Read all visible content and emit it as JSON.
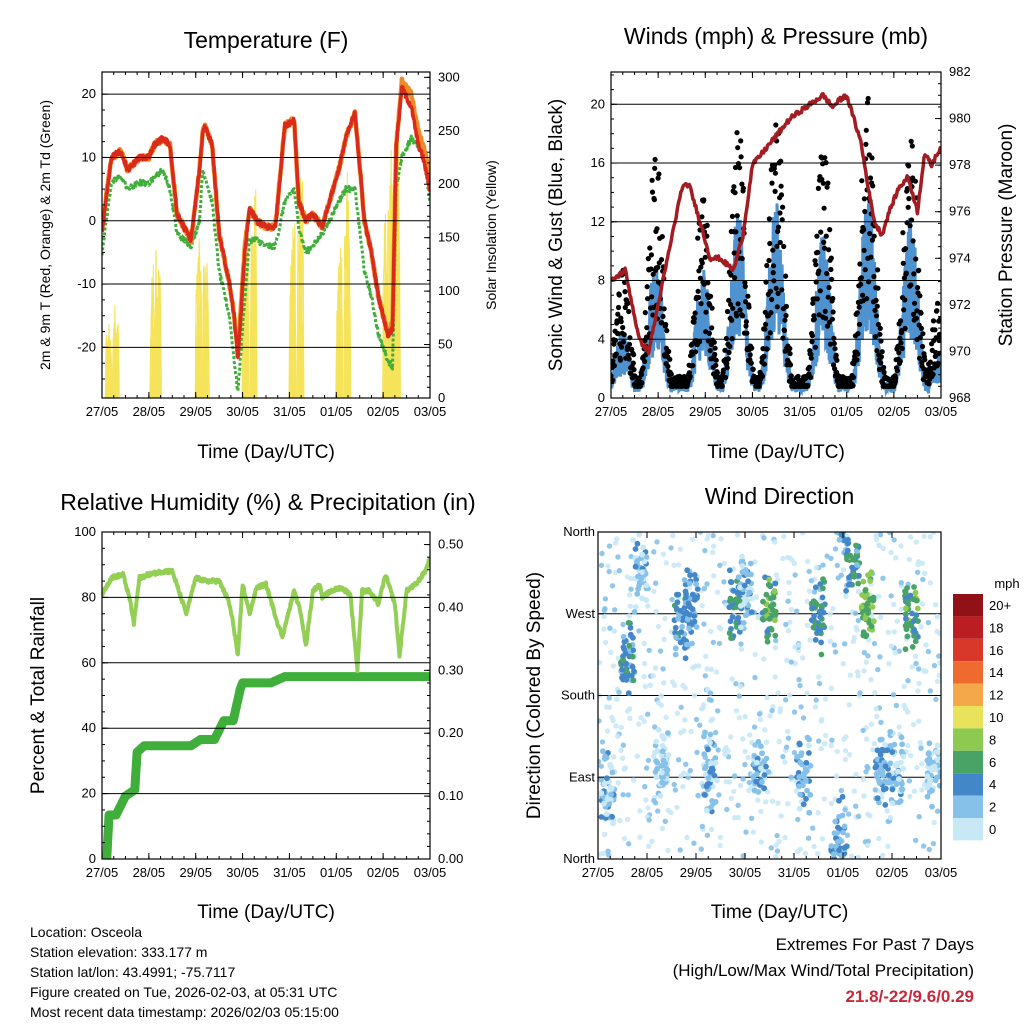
{
  "colors": {
    "temp2m": "#d92a1c",
    "temp9m": "#f08a24",
    "dewpoint": "#3fae3a",
    "solar": "#f5e35a",
    "wind": "#4f92d0",
    "gust": "#000000",
    "pressure": "#a21c22",
    "rh": "#93cf55",
    "precip": "#3fae3a",
    "extremes": "#c8283a"
  },
  "days": [
    "27/05",
    "28/05",
    "29/05",
    "30/05",
    "31/05",
    "01/05",
    "02/05",
    "03/05"
  ],
  "chart_data": [
    {
      "id": "temperature",
      "type": "line",
      "title": "Temperature (F)",
      "xlabel": "Time (Day/UTC)",
      "ylabel": "2m & 9m T (Red, Orange) & 2m Td (Green)",
      "ylabel_right": "Solar Insolation (Yellow)",
      "ylim": [
        -28,
        23.5
      ],
      "ylim_right": [
        0,
        305
      ],
      "yticks": [
        -20,
        -10,
        0,
        10,
        20
      ],
      "yticks_right": [
        0,
        50,
        100,
        150,
        200,
        250,
        300
      ],
      "x_days": [
        0,
        0.2,
        0.4,
        0.55,
        0.8,
        1,
        1.12,
        1.3,
        1.45,
        1.6,
        1.9,
        2.08,
        2.15,
        2.2,
        2.35,
        2.5,
        2.72,
        2.82,
        2.9,
        3.05,
        3.15,
        3.3,
        3.5,
        3.7,
        3.9,
        4.1,
        4.2,
        4.35,
        4.5,
        4.7,
        4.85,
        5.05,
        5.2,
        5.4,
        5.6,
        5.75,
        5.9,
        6.1,
        6.2,
        6.28,
        6.4,
        6.6,
        6.75,
        6.85,
        7
      ],
      "series": [
        {
          "name": "2m T",
          "values": [
            -2,
            10,
            11,
            8,
            10,
            10,
            12,
            13,
            12,
            1,
            -3,
            8,
            14,
            15,
            12,
            -2,
            -10,
            -15,
            -22,
            -5,
            2,
            0,
            -1,
            -1,
            15,
            16,
            3,
            0,
            1,
            -1,
            3,
            8,
            13,
            17,
            0,
            -5,
            -12,
            -18,
            -17,
            12,
            21,
            18,
            12,
            10,
            5
          ]
        },
        {
          "name": "9m T",
          "values": [
            -1,
            10,
            11,
            8,
            10,
            10,
            12,
            13,
            12,
            1,
            -3,
            8,
            14,
            15,
            12,
            -2,
            -10,
            -15,
            -21,
            -4,
            2,
            0,
            -1,
            -1,
            15,
            16,
            3,
            0,
            1,
            -1,
            3,
            8,
            13,
            17,
            0,
            -5,
            -12,
            -18,
            -16,
            12,
            22,
            20,
            14,
            12,
            7
          ]
        },
        {
          "name": "2m Td",
          "values": [
            -5,
            6,
            7,
            5,
            6,
            6,
            7,
            8,
            5,
            -2,
            -4,
            0,
            8,
            7,
            3,
            -8,
            -15,
            -22,
            -27,
            -12,
            -3,
            -3,
            -4,
            -4,
            3,
            5,
            -1,
            -5,
            -4,
            -2,
            0,
            3,
            5,
            5,
            -8,
            -12,
            -18,
            -22,
            -23,
            5,
            10,
            13,
            12,
            11,
            3
          ]
        },
        {
          "name": "Solar Insolation",
          "peaks": [
            [
              0.13,
              80
            ],
            [
              0.28,
              100
            ],
            [
              1.08,
              130
            ],
            [
              1.18,
              150
            ],
            [
              2.05,
              160
            ],
            [
              2.2,
              150
            ],
            [
              3.05,
              190
            ],
            [
              3.22,
              230
            ],
            [
              4.05,
              180
            ],
            [
              4.22,
              220
            ],
            [
              5.05,
              190
            ],
            [
              5.22,
              230
            ],
            [
              6.05,
              195
            ],
            [
              6.18,
              260
            ],
            [
              6.28,
              290
            ]
          ]
        }
      ]
    },
    {
      "id": "winds",
      "type": "scatter",
      "title": "Winds (mph) & Pressure (mb)",
      "xlabel": "Time (Day/UTC)",
      "ylabel": "Sonic Wind & Gust (Blue, Black)",
      "ylabel_right": "Station Pressure (Maroon)",
      "ylim": [
        0,
        22.2
      ],
      "ylim_right": [
        968,
        982
      ],
      "yticks": [
        0,
        4,
        8,
        12,
        16,
        20
      ],
      "yticks_right": [
        968,
        970,
        972,
        974,
        976,
        978,
        980,
        982
      ],
      "pressure": {
        "x_days": [
          0,
          0.3,
          0.6,
          0.8,
          1,
          1.2,
          1.5,
          1.65,
          1.9,
          2.1,
          2.3,
          2.6,
          2.8,
          3,
          3.2,
          3.4,
          3.6,
          3.8,
          4,
          4.15,
          4.35,
          4.5,
          4.7,
          4.85,
          5.0,
          5.15,
          5.3,
          5.5,
          5.6,
          5.75,
          5.9,
          6.1,
          6.3,
          6.5,
          6.65,
          6.8,
          7
        ],
        "values": [
          973,
          973.5,
          970.5,
          970,
          972,
          974,
          977,
          977.2,
          975.5,
          974,
          974,
          973.5,
          975,
          978,
          978.5,
          979,
          979.5,
          980,
          980.3,
          980.5,
          980.8,
          981,
          980.5,
          980.8,
          981,
          980,
          979,
          976.5,
          975.5,
          975,
          976,
          977,
          977.5,
          976,
          978.5,
          978,
          978.8
        ]
      },
      "wind_peak_days": [
        0.25,
        0.95,
        1.95,
        2.7,
        3.5,
        4.5,
        5.45,
        6.35,
        6.95
      ],
      "wind_peak_mph": [
        6,
        12,
        11,
        16,
        17,
        14,
        18,
        16,
        4
      ],
      "gust_peak_mph": [
        9,
        17,
        14,
        19,
        20,
        18,
        21,
        19,
        7
      ]
    },
    {
      "id": "humidity",
      "type": "line",
      "title": "Relative Humidity (%) & Precipitation (in)",
      "xlabel": "Time (Day/UTC)",
      "ylabel": "Percent & Total Rainfall",
      "ylim": [
        0,
        100
      ],
      "ylim_right": [
        0,
        0.52
      ],
      "yticks": [
        0,
        20,
        40,
        60,
        80,
        100
      ],
      "yticks_right": [
        "0.00",
        "0.10",
        "0.20",
        "0.30",
        "0.40",
        "0.50"
      ],
      "rh": {
        "x_days": [
          0,
          0.2,
          0.45,
          0.6,
          0.68,
          0.8,
          1,
          1.3,
          1.5,
          1.8,
          2,
          2.2,
          2.5,
          2.7,
          2.8,
          2.9,
          3,
          3.15,
          3.3,
          3.5,
          3.75,
          3.85,
          4.1,
          4.25,
          4.35,
          4.5,
          4.65,
          4.7,
          4.9,
          5.1,
          5.3,
          5.45,
          5.55,
          5.7,
          5.9,
          6.05,
          6.25,
          6.35,
          6.5,
          6.7,
          6.9,
          7
        ],
        "values": [
          81,
          86,
          87,
          79,
          72,
          86,
          87,
          88,
          88,
          75,
          86,
          85,
          85,
          79,
          72,
          62,
          84,
          75,
          83,
          84,
          72,
          68,
          82,
          75,
          65,
          82,
          84,
          80,
          82,
          83,
          81,
          58,
          82,
          82,
          78,
          87,
          78,
          62,
          82,
          84,
          88,
          92
        ]
      },
      "precip_in": {
        "x_days": [
          0,
          0.1,
          0.15,
          0.3,
          0.5,
          0.7,
          0.75,
          0.9,
          1.1,
          1.5,
          1.7,
          1.9,
          2.1,
          2.4,
          2.6,
          2.8,
          2.95,
          3,
          3.6,
          3.9,
          4,
          7
        ],
        "values": [
          0,
          0,
          0.07,
          0.07,
          0.1,
          0.11,
          0.17,
          0.18,
          0.18,
          0.18,
          0.18,
          0.18,
          0.19,
          0.19,
          0.22,
          0.22,
          0.27,
          0.28,
          0.28,
          0.29,
          0.29,
          0.29
        ]
      }
    },
    {
      "id": "direction",
      "type": "scatter",
      "title": "Wind Direction",
      "xlabel": "Time (Day/UTC)",
      "ylabel": "Direction (Colored By Speed)",
      "yticks": [
        "North",
        "East",
        "South",
        "West",
        "North"
      ],
      "legend": {
        "title": "mph",
        "labels": [
          "0",
          "2",
          "4",
          "6",
          "8",
          "10",
          "12",
          "14",
          "16",
          "18",
          "20+"
        ],
        "colors": [
          "#c9e8f6",
          "#86c1ea",
          "#4487c8",
          "#4aa366",
          "#8ec951",
          "#e8e35a",
          "#f4a84a",
          "#ee6a2e",
          "#d8382a",
          "#bb1e22",
          "#911216"
        ]
      },
      "clusters": [
        {
          "day": 0.2,
          "dir": 80,
          "spd": 2
        },
        {
          "day": 0.6,
          "dir": 220,
          "spd": 4
        },
        {
          "day": 0.85,
          "dir": 320,
          "spd": 2
        },
        {
          "day": 1.3,
          "dir": 100,
          "spd": 1
        },
        {
          "day": 1.7,
          "dir": 260,
          "spd": 4
        },
        {
          "day": 1.9,
          "dir": 280,
          "spd": 3
        },
        {
          "day": 2.3,
          "dir": 95,
          "spd": 2
        },
        {
          "day": 2.8,
          "dir": 280,
          "spd": 5
        },
        {
          "day": 3.0,
          "dir": 300,
          "spd": 2
        },
        {
          "day": 3.3,
          "dir": 100,
          "spd": 2
        },
        {
          "day": 3.5,
          "dir": 280,
          "spd": 6
        },
        {
          "day": 4.2,
          "dir": 95,
          "spd": 2
        },
        {
          "day": 4.5,
          "dir": 270,
          "spd": 5
        },
        {
          "day": 4.9,
          "dir": 20,
          "spd": 3
        },
        {
          "day": 5.2,
          "dir": 330,
          "spd": 4
        },
        {
          "day": 5.5,
          "dir": 280,
          "spd": 7
        },
        {
          "day": 6.1,
          "dir": 100,
          "spd": 2
        },
        {
          "day": 6.4,
          "dir": 270,
          "spd": 6
        },
        {
          "day": 6.85,
          "dir": 100,
          "spd": 1
        },
        {
          "day": 5.8,
          "dir": 95,
          "spd": 3
        }
      ]
    }
  ],
  "info": {
    "location": "Location: Osceola",
    "elevation": "Station elevation: 333.177 m",
    "latlon": "Station lat/lon: 43.4991; -75.7117",
    "created": "Figure created on Tue, 2026-02-03, at 05:31 UTC",
    "latest": "Most recent data timestamp: 2026/02/03 05:15:00"
  },
  "extremes": {
    "line1": "Extremes For Past 7 Days",
    "line2": "(High/Low/Max Wind/Total Precipitation)",
    "value": "21.8/-22/9.6/0.29"
  }
}
